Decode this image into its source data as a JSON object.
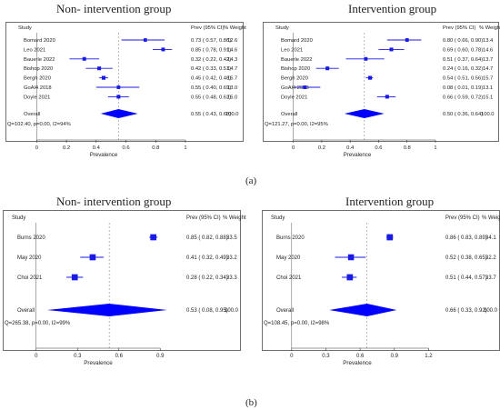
{
  "panel_labels": {
    "a": "(a)",
    "b": "(b)"
  },
  "chart_data": [
    {
      "type": "forest",
      "title": "Non- intervention group",
      "headers": {
        "study": "Study",
        "prev": "Prev (95% CI)",
        "weight": "% Weight"
      },
      "xlabel": "Prevalence",
      "xlim": [
        -0.1,
        1.0
      ],
      "xticks": [
        "0",
        "0.2",
        "0.4",
        "0.6",
        "0.8",
        "1"
      ],
      "studies": [
        {
          "name": "Bomard 2020",
          "est": 0.73,
          "lo": 0.57,
          "hi": 0.86,
          "ci_text": "0.73  ( 0.57,  0.86)",
          "weight": "12.6"
        },
        {
          "name": "Leo 2021",
          "est": 0.85,
          "lo": 0.78,
          "hi": 0.91,
          "ci_text": "0.85  ( 0.78,  0.91)",
          "weight": "14.6"
        },
        {
          "name": "Bauerle 2022",
          "est": 0.32,
          "lo": 0.22,
          "hi": 0.42,
          "ci_text": "0.32  ( 0.22,  0.42)",
          "weight": "14.3"
        },
        {
          "name": "Bishop 2020",
          "est": 0.42,
          "lo": 0.33,
          "hi": 0.51,
          "ci_text": "0.42  ( 0.33,  0.51)",
          "weight": "14.7"
        },
        {
          "name": "Bergh 2020",
          "est": 0.45,
          "lo": 0.42,
          "hi": 0.48,
          "ci_text": "0.45  ( 0.42,  0.48)",
          "weight": "15.7"
        },
        {
          "name": "GoAl4 2018",
          "est": 0.55,
          "lo": 0.4,
          "hi": 0.69,
          "ci_text": "0.55  ( 0.40,  0.69)",
          "weight": "13.0"
        },
        {
          "name": "Doyle 2021",
          "est": 0.55,
          "lo": 0.48,
          "hi": 0.62,
          "ci_text": "0.55  ( 0.48,  0.62)",
          "weight": "15.0"
        }
      ],
      "overall": {
        "name": "Overall",
        "est": 0.55,
        "lo": 0.43,
        "hi": 0.68,
        "ci_text": "0.55  ( 0.43,  0.68)",
        "weight": "100.0"
      },
      "heterogeneity": "Q=102.40, p=0.00, I2=94%",
      "colors": {
        "marks": "#1a1ae6",
        "overall": "#0000ff"
      }
    },
    {
      "type": "forest",
      "title": "Intervention group",
      "headers": {
        "study": "Study",
        "prev": "Prev (95% CI)",
        "weight": "% Weight"
      },
      "xlabel": "Prevalence",
      "xlim": [
        -0.1,
        1.0
      ],
      "xticks": [
        "0",
        "0.2",
        "0.4",
        "0.6",
        "0.8",
        "1"
      ],
      "studies": [
        {
          "name": "Bomard 2020",
          "est": 0.8,
          "lo": 0.66,
          "hi": 0.9,
          "ci_text": "0.80  ( 0.66,  0.90)",
          "weight": "13.4"
        },
        {
          "name": "Leo 2021",
          "est": 0.69,
          "lo": 0.6,
          "hi": 0.78,
          "ci_text": "0.69  ( 0.60,  0.78)",
          "weight": "14.6"
        },
        {
          "name": "Bauerle 2022",
          "est": 0.51,
          "lo": 0.37,
          "hi": 0.64,
          "ci_text": "0.51  ( 0.37,  0.64)",
          "weight": "13.7"
        },
        {
          "name": "Bishop 2020",
          "est": 0.24,
          "lo": 0.16,
          "hi": 0.32,
          "ci_text": "0.24  ( 0.16,  0.32)",
          "weight": "14.7"
        },
        {
          "name": "Bergh 2020",
          "est": 0.54,
          "lo": 0.51,
          "hi": 0.56,
          "ci_text": "0.54  ( 0.51,  0.56)",
          "weight": "15.7"
        },
        {
          "name": "GoAl4 2018",
          "est": 0.08,
          "lo": 0.01,
          "hi": 0.19,
          "ci_text": "0.08  ( 0.01,  0.19)",
          "weight": "13.1"
        },
        {
          "name": "Doyle 2021",
          "est": 0.66,
          "lo": 0.59,
          "hi": 0.72,
          "ci_text": "0.66  ( 0.59,  0.72)",
          "weight": "15.1"
        }
      ],
      "overall": {
        "name": "Overall",
        "est": 0.5,
        "lo": 0.36,
        "hi": 0.64,
        "ci_text": "0.50  ( 0.36,  0.64)",
        "weight": "100.0"
      },
      "heterogeneity": "Q=121.27, p=0.00, I2=95%",
      "colors": {
        "marks": "#1a1ae6",
        "overall": "#0000ff"
      }
    },
    {
      "type": "forest",
      "title": "Non- intervention group",
      "headers": {
        "study": "Study",
        "prev": "Prev (95% CI)",
        "weight": "% Weight"
      },
      "xlabel": "Prevalence",
      "xlim": [
        -0.15,
        1.05
      ],
      "xticks": [
        "0",
        "0.3",
        "0.6",
        "0.9"
      ],
      "studies": [
        {
          "name": "Burns 2020",
          "est": 0.85,
          "lo": 0.82,
          "hi": 0.88,
          "ci_text": "0.85  ( 0.82,  0.88)",
          "weight": "33.5"
        },
        {
          "name": "May 2020",
          "est": 0.41,
          "lo": 0.32,
          "hi": 0.49,
          "ci_text": "0.41  ( 0.32,  0.49)",
          "weight": "33.2"
        },
        {
          "name": "Choi 2021",
          "est": 0.28,
          "lo": 0.22,
          "hi": 0.34,
          "ci_text": "0.28  ( 0.22,  0.34)",
          "weight": "33.3"
        }
      ],
      "overall": {
        "name": "Overall",
        "est": 0.53,
        "lo": 0.08,
        "hi": 0.95,
        "ci_text": "0.53  ( 0.08,  0.95)",
        "weight": "100.0"
      },
      "heterogeneity": "Q=265.38, p=0.00, I2=99%",
      "colors": {
        "marks": "#1a1ae6",
        "overall": "#0000ff"
      }
    },
    {
      "type": "forest",
      "title": "Intervention group",
      "headers": {
        "study": "Study",
        "prev": "Prev (95% CI)",
        "weight": "% Weight"
      },
      "xlabel": "Prevalence",
      "xlim": [
        -0.15,
        1.3
      ],
      "xticks": [
        "0",
        "0.3",
        "0.6",
        "0.9",
        "1.2"
      ],
      "studies": [
        {
          "name": "Burns 2020",
          "est": 0.86,
          "lo": 0.83,
          "hi": 0.89,
          "ci_text": "0.86  ( 0.83,  0.89)",
          "weight": "34.1"
        },
        {
          "name": "May 2020",
          "est": 0.52,
          "lo": 0.38,
          "hi": 0.65,
          "ci_text": "0.52  ( 0.38,  0.65)",
          "weight": "32.2"
        },
        {
          "name": "Choi 2021",
          "est": 0.51,
          "lo": 0.44,
          "hi": 0.57,
          "ci_text": "0.51  ( 0.44,  0.57)",
          "weight": "33.7"
        }
      ],
      "overall": {
        "name": "Overall",
        "est": 0.66,
        "lo": 0.33,
        "hi": 0.92,
        "ci_text": "0.66  ( 0.33,  0.92)",
        "weight": "100.0"
      },
      "heterogeneity": "Q=108.45, p=0.00, I2=98%",
      "colors": {
        "marks": "#1a1ae6",
        "overall": "#0000ff"
      }
    }
  ]
}
